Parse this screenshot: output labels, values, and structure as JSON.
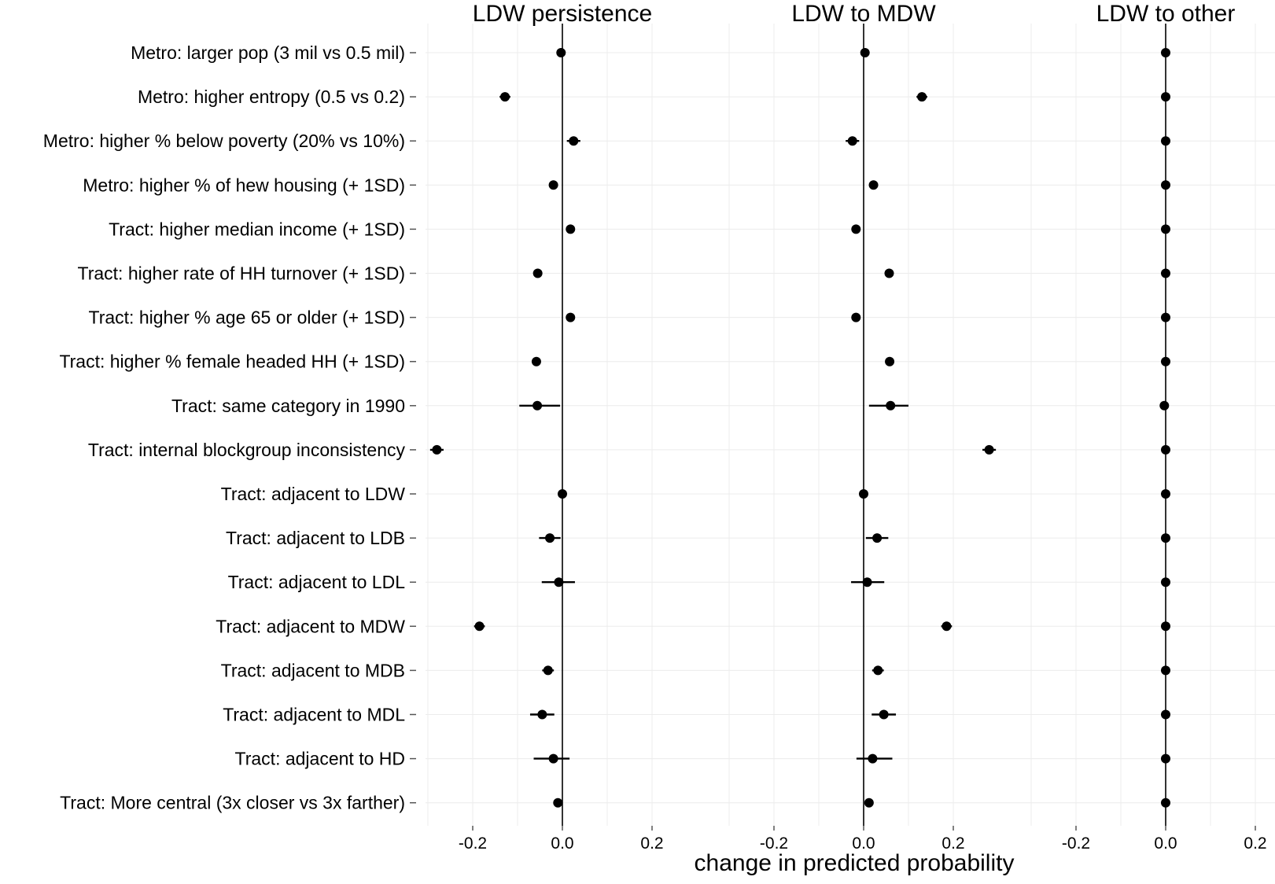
{
  "chart_data": {
    "type": "scatter",
    "subtype": "coefficient-dot-whisker",
    "xlabel": "change in predicted probability",
    "xlim": [
      -0.3,
      0.2
    ],
    "xticks": [
      -0.2,
      0.0,
      0.2
    ],
    "xtick_labels": [
      "-0.2",
      "0.0",
      "0.2"
    ],
    "grid": true,
    "legend": "none",
    "colors": {
      "marks": "#000000",
      "grid": "#ececec",
      "background": "#ffffff"
    },
    "rows": [
      "Metro: larger pop (3 mil vs 0.5 mil)",
      "Metro: higher entropy (0.5 vs 0.2)",
      "Metro: higher % below poverty (20% vs 10%)",
      "Metro: higher % of hew housing (+ 1SD)",
      "Tract: higher median income (+ 1SD)",
      "Tract: higher rate of HH turnover (+ 1SD)",
      "Tract: higher % age 65 or older (+ 1SD)",
      "Tract: higher % female headed HH (+ 1SD)",
      "Tract: same category in 1990",
      "Tract: internal blockgroup inconsistency",
      "Tract: adjacent to LDW",
      "Tract: adjacent to LDB",
      "Tract: adjacent to LDL",
      "Tract: adjacent to MDW",
      "Tract: adjacent to MDB",
      "Tract: adjacent to MDL",
      "Tract: adjacent to HD",
      "Tract: More central (3x closer vs 3x farther)"
    ],
    "panels": [
      {
        "title": "LDW persistence",
        "estimate": [
          -0.003,
          -0.128,
          0.025,
          -0.02,
          0.018,
          -0.055,
          0.018,
          -0.058,
          -0.056,
          -0.28,
          0.0,
          -0.028,
          -0.008,
          -0.185,
          -0.032,
          -0.045,
          -0.02,
          -0.01
        ],
        "lower": [
          -0.012,
          -0.14,
          0.01,
          -0.026,
          0.013,
          -0.062,
          0.013,
          -0.064,
          -0.096,
          -0.295,
          -0.004,
          -0.052,
          -0.046,
          -0.197,
          -0.045,
          -0.072,
          -0.064,
          -0.018
        ],
        "upper": [
          0.006,
          -0.116,
          0.04,
          -0.014,
          0.023,
          -0.048,
          0.023,
          -0.052,
          -0.005,
          -0.265,
          0.004,
          -0.004,
          0.028,
          -0.173,
          -0.019,
          -0.018,
          0.016,
          -0.002
        ]
      },
      {
        "title": "LDW to MDW",
        "estimate": [
          0.003,
          0.13,
          -0.025,
          0.022,
          -0.017,
          0.057,
          -0.017,
          0.058,
          0.06,
          0.28,
          0.0,
          0.03,
          0.008,
          0.185,
          0.032,
          0.045,
          0.02,
          0.012
        ],
        "lower": [
          -0.006,
          0.118,
          -0.04,
          0.016,
          -0.022,
          0.05,
          -0.022,
          0.052,
          0.012,
          0.265,
          -0.004,
          0.005,
          -0.028,
          0.173,
          0.019,
          0.018,
          -0.016,
          0.004
        ],
        "upper": [
          0.012,
          0.142,
          -0.01,
          0.028,
          -0.012,
          0.064,
          -0.012,
          0.064,
          0.1,
          0.295,
          0.004,
          0.055,
          0.046,
          0.197,
          0.045,
          0.072,
          0.064,
          0.02
        ]
      },
      {
        "title": "LDW to other",
        "estimate": [
          0.0,
          0.0,
          0.0,
          0.0,
          0.0,
          0.0,
          0.0,
          0.0,
          -0.003,
          0.0,
          0.0,
          0.0,
          0.0,
          0.0,
          0.0,
          0.0,
          0.0,
          0.0
        ],
        "lower": [
          -0.002,
          -0.002,
          -0.002,
          -0.002,
          -0.002,
          -0.002,
          -0.002,
          -0.002,
          -0.005,
          -0.002,
          -0.002,
          -0.002,
          -0.002,
          -0.002,
          -0.002,
          -0.002,
          -0.002,
          -0.002
        ],
        "upper": [
          0.002,
          0.002,
          0.002,
          0.002,
          0.002,
          0.002,
          0.002,
          0.002,
          -0.001,
          0.002,
          0.002,
          0.002,
          0.002,
          0.002,
          0.002,
          0.002,
          0.002,
          0.002
        ]
      }
    ]
  }
}
